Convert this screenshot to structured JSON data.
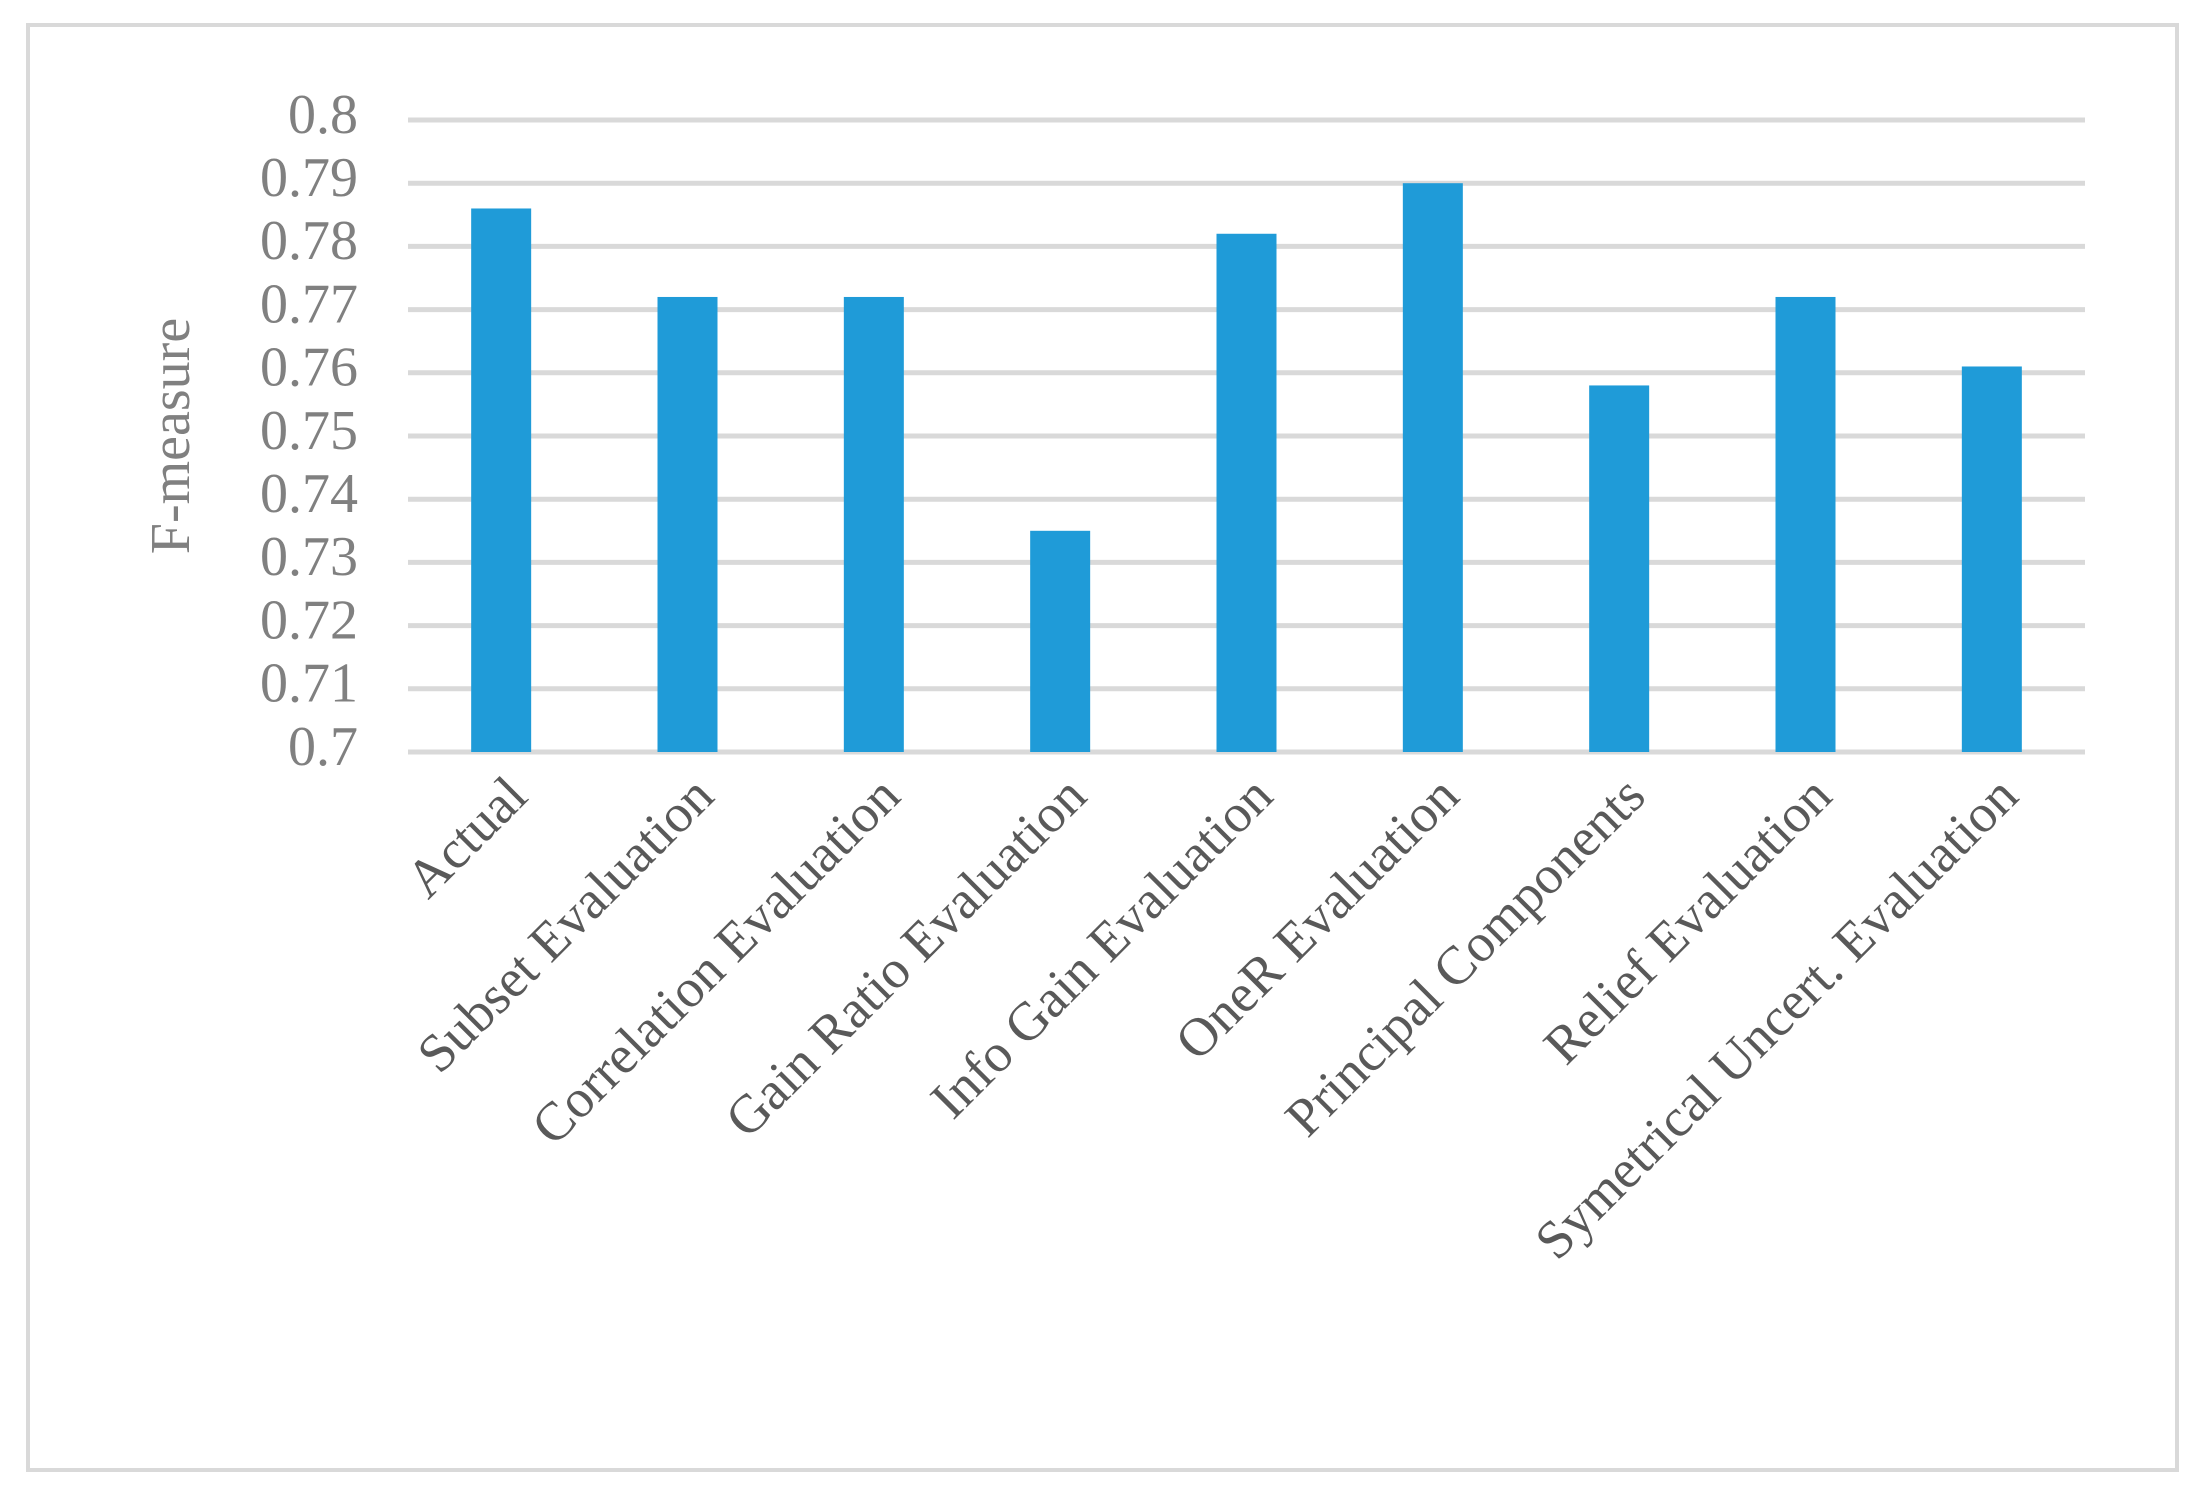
{
  "chart_data": {
    "type": "bar",
    "y_label": "F-measure",
    "categories": [
      "Actual",
      "Subset Evaluation",
      "Correlation Evaluation",
      "Gain Ratio Evaluation",
      "Info Gain Evaluation",
      "OneR Evaluation",
      "Principal Components",
      "Relief Evaluation",
      "Symetrical Uncert. Evaluation"
    ],
    "values": [
      0.786,
      0.772,
      0.772,
      0.735,
      0.782,
      0.79,
      0.758,
      0.772,
      0.761
    ],
    "color": "#1f9bd8",
    "ylim": [
      0.7,
      0.8
    ],
    "yticks": [
      0.7,
      0.71,
      0.72,
      0.73,
      0.74,
      0.75,
      0.76,
      0.77,
      0.78,
      0.79,
      0.8
    ],
    "grid": true
  }
}
